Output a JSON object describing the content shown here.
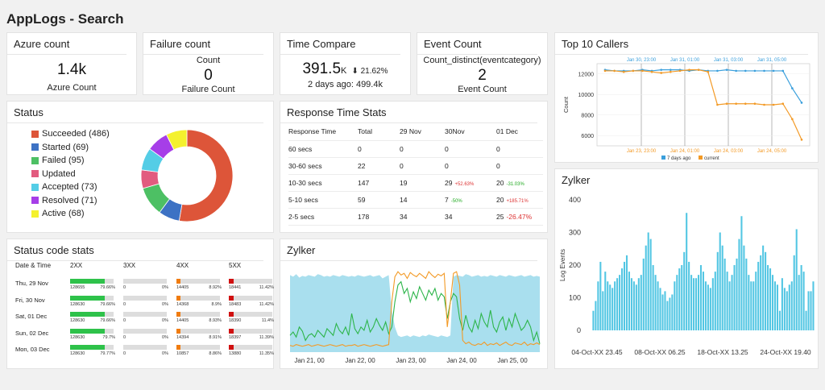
{
  "page": {
    "title": "AppLogs - Search"
  },
  "kpis": [
    {
      "title": "Azure count",
      "line1": "",
      "value": "1.4k",
      "sub": "Azure Count"
    },
    {
      "title": "Failure count",
      "line1": "Count",
      "value": "0",
      "sub": "Failure Count"
    },
    {
      "title": "Time Compare",
      "line1": "",
      "value": "391.5",
      "unit": "K",
      "delta": "⬇ 21.62%",
      "sub": "2 days ago: 499.4k"
    },
    {
      "title": "Event Count",
      "line1": "Count_distinct(eventcategory)",
      "value": "2",
      "sub": "Event Count"
    }
  ],
  "status": {
    "title": "Status",
    "items": [
      {
        "label": "Succeeded (486)",
        "color": "#dd5539",
        "value": 486
      },
      {
        "label": "Started (69)",
        "color": "#3d72c4",
        "value": 69
      },
      {
        "label": "Failed (95)",
        "color": "#4dc064",
        "value": 95
      },
      {
        "label": "Updated",
        "color": "#e25b7f",
        "value": 60
      },
      {
        "label": "Accepted (73)",
        "color": "#54cde6",
        "value": 73
      },
      {
        "label": "Resolved (71)",
        "color": "#a63ee8",
        "value": 71
      },
      {
        "label": "Active (68)",
        "color": "#f4f12e",
        "value": 68
      }
    ]
  },
  "response_time": {
    "title": "Response Time Stats",
    "headers": [
      "Response Time",
      "Total",
      "29 Nov",
      "30Nov",
      "01 Dec"
    ],
    "rows": [
      {
        "label": "60 secs",
        "total": "0",
        "d29": "0",
        "d30": "0",
        "d30_pct": "",
        "d30_dir": "",
        "d01": "0",
        "d01_pct": "",
        "d01_dir": ""
      },
      {
        "label": "30-60 secs",
        "total": "22",
        "d29": "0",
        "d30": "0",
        "d30_pct": "",
        "d30_dir": "",
        "d01": "0",
        "d01_pct": "",
        "d01_dir": ""
      },
      {
        "label": "10-30 secs",
        "total": "147",
        "d29": "19",
        "d30": "29",
        "d30_pct": "+52.63%",
        "d30_dir": "up",
        "d01": "20",
        "d01_pct": "-31.03%",
        "d01_dir": "down"
      },
      {
        "label": "5-10 secs",
        "total": "59",
        "d29": "14",
        "d30": "7",
        "d30_pct": "-50%",
        "d30_dir": "down",
        "d01": "20",
        "d01_pct": "+185.71%",
        "d01_dir": "up"
      },
      {
        "label": "2-5 secs",
        "total": "178",
        "d29": "34",
        "d30": "34",
        "d30_pct": "",
        "d30_dir": "",
        "d01": "25",
        "d01_pct": "-26.47%",
        "d01_dir": "upbig"
      }
    ]
  },
  "status_codes": {
    "title": "Status code stats",
    "headers": [
      "Date & Time",
      "2XX",
      "3XX",
      "4XX",
      "5XX"
    ],
    "colors": {
      "2XX": "#2ec24a",
      "3XX": "#cccccc",
      "4XX": "#f07c10",
      "5XX": "#d01010"
    },
    "rows": [
      {
        "date": "Thu, 29 Nov",
        "c2": "128655",
        "p2": "79.66%",
        "f2": 0.8,
        "c3": "0",
        "p3": "0%",
        "f3": 0,
        "c4": "14405",
        "p4": "8.92%",
        "f4": 0.09,
        "c5": "18441",
        "p5": "11.42%",
        "f5": 0.11
      },
      {
        "date": "Fri, 30 Nov",
        "c2": "128630",
        "p2": "79.66%",
        "f2": 0.8,
        "c3": "0",
        "p3": "0%",
        "f3": 0,
        "c4": "14368",
        "p4": "8.9%",
        "f4": 0.09,
        "c5": "18483",
        "p5": "11.42%",
        "f5": 0.11
      },
      {
        "date": "Sat, 01 Dec",
        "c2": "128630",
        "p2": "79.66%",
        "f2": 0.8,
        "c3": "0",
        "p3": "0%",
        "f3": 0,
        "c4": "14405",
        "p4": "8.93%",
        "f4": 0.09,
        "c5": "18390",
        "p5": "11.4%",
        "f5": 0.11
      },
      {
        "date": "Sun, 02 Dec",
        "c2": "128630",
        "p2": "79.7%",
        "f2": 0.8,
        "c3": "0",
        "p3": "0%",
        "f3": 0,
        "c4": "14394",
        "p4": "8.91%",
        "f4": 0.09,
        "c5": "18397",
        "p5": "11.39%",
        "f5": 0.11
      },
      {
        "date": "Mon, 03 Dec",
        "c2": "128630",
        "p2": "79.77%",
        "f2": 0.8,
        "c3": "0",
        "p3": "0%",
        "f3": 0,
        "c4": "10857",
        "p4": "8.86%",
        "f4": 0.09,
        "c5": "13880",
        "p5": "11.35%",
        "f5": 0.11
      }
    ]
  },
  "chart_data": [
    {
      "type": "line",
      "title": "Top 10 Callers",
      "ylabel": "Count",
      "ylim": [
        5000,
        13000
      ],
      "yticks": [
        6000,
        8000,
        10000,
        12000
      ],
      "x_top_labels": [
        "Jan 30, 23:00",
        "Jan 31, 01:00",
        "Jan 31, 03:00",
        "Jan 31, 05:00"
      ],
      "x_bottom_labels": [
        "Jan 23, 23:00",
        "Jan 24, 01:00",
        "Jan 24, 03:00",
        "Jan 24, 05:00"
      ],
      "legend_position": "bottom",
      "series": [
        {
          "name": "7 days ago",
          "color": "#3a9fdc",
          "values": [
            12400,
            12300,
            12300,
            12300,
            12400,
            12300,
            12400,
            12400,
            12400,
            12300,
            12400,
            12300,
            12300,
            12400,
            12300,
            12300,
            12300,
            12300,
            12300,
            12300,
            10600,
            9200
          ]
        },
        {
          "name": "current",
          "color": "#f39a26",
          "values": [
            12300,
            12300,
            12200,
            12300,
            12300,
            12200,
            12100,
            12200,
            12300,
            12400,
            12400,
            12200,
            9000,
            9100,
            9100,
            9100,
            9100,
            9000,
            9000,
            9100,
            7600,
            5600
          ]
        }
      ]
    },
    {
      "type": "area",
      "title": "Zylker",
      "x_labels": [
        "Jan 21, 00",
        "Jan 22, 00",
        "Jan 23, 00",
        "Jan 24, 00",
        "Jan 25, 00"
      ],
      "series": [
        {
          "name": "area",
          "color": "#a9dfee",
          "values": [
            92,
            90,
            93,
            89,
            91,
            90,
            92,
            91,
            90,
            93,
            92,
            90,
            91,
            90,
            92,
            91,
            90,
            92,
            91,
            90,
            91,
            90,
            92,
            91,
            90,
            91,
            92,
            90,
            91,
            92,
            88,
            90,
            92,
            50,
            30,
            20,
            18,
            19,
            20,
            18,
            20,
            19,
            18,
            20,
            19,
            21,
            20,
            19,
            18,
            20,
            19,
            18,
            20,
            90,
            92,
            91,
            90,
            93,
            92,
            90,
            91,
            92,
            90,
            91,
            90,
            92,
            91,
            90,
            92,
            91,
            90,
            92,
            91,
            90,
            91,
            92,
            90,
            91,
            92,
            90,
            91,
            90
          ]
        },
        {
          "name": "green",
          "color": "#2db54a",
          "values": [
            20,
            24,
            18,
            30,
            25,
            14,
            20,
            22,
            18,
            26,
            22,
            18,
            28,
            24,
            20,
            34,
            26,
            22,
            30,
            20,
            46,
            28,
            22,
            30,
            26,
            38,
            24,
            30,
            40,
            32,
            26,
            36,
            22,
            30,
            60,
            80,
            84,
            70,
            76,
            60,
            72,
            64,
            78,
            70,
            62,
            74,
            68,
            76,
            62,
            70,
            66,
            40,
            60,
            70,
            66,
            40,
            26,
            44,
            30,
            24,
            38,
            28,
            46,
            36,
            30,
            50,
            30,
            24,
            36,
            42,
            26,
            40,
            30,
            46,
            36,
            26,
            30,
            38,
            30,
            14,
            24,
            10
          ]
        },
        {
          "name": "orange",
          "color": "#f39a26",
          "values": [
            8,
            7,
            9,
            8,
            7,
            8,
            9,
            7,
            8,
            9,
            8,
            7,
            8,
            9,
            8,
            7,
            8,
            9,
            7,
            8,
            8,
            9,
            7,
            8,
            9,
            8,
            7,
            8,
            9,
            8,
            7,
            8,
            9,
            60,
            90,
            96,
            92,
            94,
            88,
            95,
            92,
            90,
            94,
            91,
            88,
            96,
            92,
            89,
            93,
            91,
            94,
            30,
            60,
            94,
            96,
            80,
            14,
            10,
            12,
            9,
            8,
            10,
            9,
            12,
            8,
            10,
            9,
            11,
            8,
            10,
            12,
            9,
            8,
            11,
            10,
            9,
            12,
            8,
            10,
            9,
            11,
            9
          ]
        }
      ]
    },
    {
      "type": "bar",
      "title": "Zylker",
      "ylabel": "Log Events",
      "ylim": [
        0,
        400
      ],
      "yticks": [
        0,
        100,
        200,
        300,
        400
      ],
      "x_labels": [
        "04-Oct-XX 23.45",
        "08-Oct-XX 06.25",
        "18-Oct-XX 13.25",
        "24-Oct-XX 19.40"
      ],
      "color": "#52c6e3",
      "values": [
        60,
        90,
        150,
        210,
        120,
        180,
        150,
        140,
        130,
        150,
        160,
        170,
        190,
        210,
        230,
        180,
        160,
        150,
        140,
        160,
        170,
        220,
        260,
        300,
        280,
        200,
        170,
        150,
        130,
        110,
        120,
        90,
        100,
        110,
        150,
        170,
        190,
        200,
        240,
        360,
        210,
        170,
        160,
        160,
        170,
        200,
        180,
        150,
        140,
        130,
        160,
        180,
        240,
        300,
        260,
        220,
        180,
        150,
        170,
        200,
        220,
        280,
        350,
        260,
        220,
        170,
        150,
        150,
        180,
        210,
        230,
        260,
        240,
        200,
        190,
        170,
        150,
        140,
        60,
        160,
        130,
        120,
        140,
        150,
        230,
        310,
        170,
        200,
        180,
        60,
        120,
        120,
        150
      ]
    }
  ]
}
